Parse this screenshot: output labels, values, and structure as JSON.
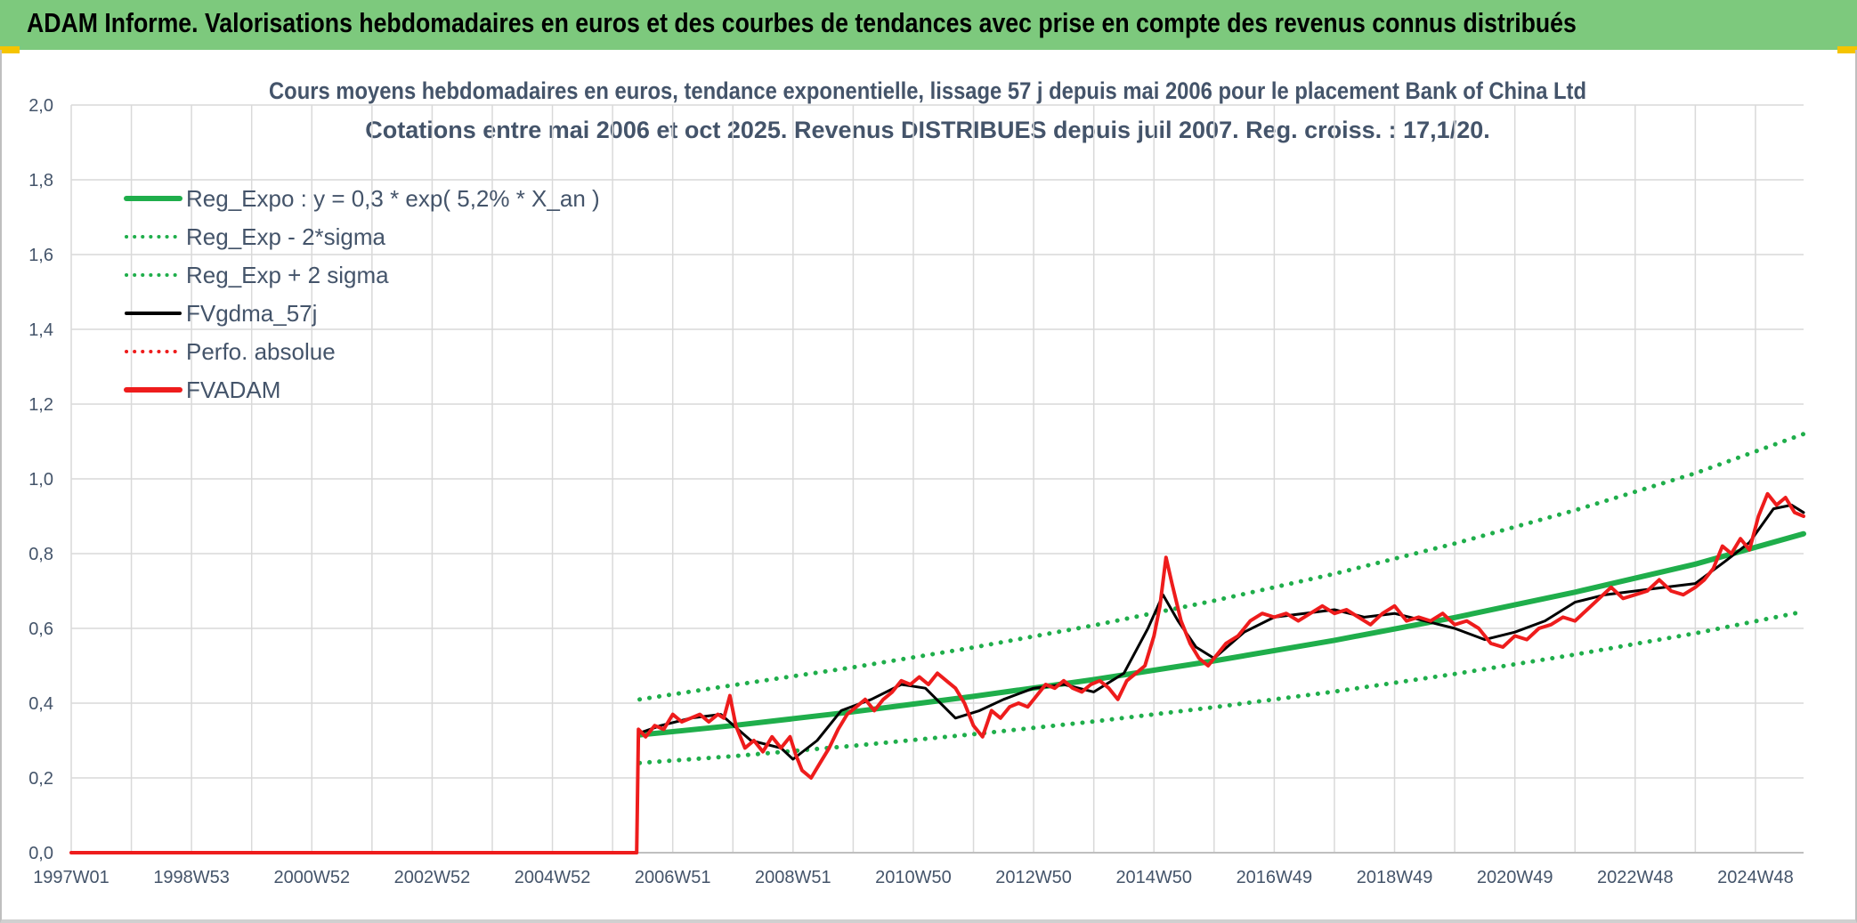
{
  "header": {
    "title": "ADAM Informe. Valorisations hebdomadaires en euros et des courbes de tendances avec prise en compte des revenus connus distribués"
  },
  "chart_data": {
    "type": "line",
    "title_line1": "Cours moyens hebdomadaires en euros, tendance exponentielle, lissage 57 j depuis mai 2006 pour le placement Bank of China Ltd",
    "title_line2": "Cotations entre mai 2006 et oct 2025. Revenus DISTRIBUES depuis juil 2007. Reg. croiss. : 17,1/20.",
    "xlabel": "",
    "ylabel": "",
    "ylim": [
      0,
      2.0
    ],
    "xlim": [
      1997.0,
      2025.8
    ],
    "grid": true,
    "legend_position": "top-left",
    "yticks": [
      "0,0",
      "0,2",
      "0,4",
      "0,6",
      "0,8",
      "1,0",
      "1,2",
      "1,4",
      "1,6",
      "1,8",
      "2,0"
    ],
    "xticks": [
      {
        "label": "1997W01",
        "x": 1997.0
      },
      {
        "label": "1998W53",
        "x": 1999.0
      },
      {
        "label": "2000W52",
        "x": 2001.0
      },
      {
        "label": "2002W52",
        "x": 2003.0
      },
      {
        "label": "2004W52",
        "x": 2005.0
      },
      {
        "label": "2006W51",
        "x": 2007.0
      },
      {
        "label": "2008W51",
        "x": 2009.0
      },
      {
        "label": "2010W50",
        "x": 2011.0
      },
      {
        "label": "2012W50",
        "x": 2013.0
      },
      {
        "label": "2014W50",
        "x": 2015.0
      },
      {
        "label": "2016W49",
        "x": 2017.0
      },
      {
        "label": "2018W49",
        "x": 2019.0
      },
      {
        "label": "2020W49",
        "x": 2021.0
      },
      {
        "label": "2022W48",
        "x": 2023.0
      },
      {
        "label": "2024W48",
        "x": 2025.0
      }
    ],
    "series": [
      {
        "name": "Reg_Expo : y = 0,3 * exp( 5,2% *  X_an )",
        "color": "#1fae4b",
        "style": "solid",
        "x": [
          2006.45,
          2008,
          2010,
          2012,
          2014,
          2016,
          2018,
          2020,
          2022,
          2024,
          2025.8
        ],
        "y": [
          0.315,
          0.34,
          0.377,
          0.418,
          0.463,
          0.513,
          0.568,
          0.629,
          0.697,
          0.772,
          0.853
        ]
      },
      {
        "name": "Reg_Exp - 2*sigma",
        "color": "#1fae4b",
        "style": "dotted",
        "x": [
          2006.45,
          2008,
          2010,
          2012,
          2014,
          2016,
          2018,
          2020,
          2022,
          2024,
          2025.8
        ],
        "y": [
          0.24,
          0.258,
          0.286,
          0.317,
          0.351,
          0.389,
          0.431,
          0.478,
          0.53,
          0.587,
          0.645
        ]
      },
      {
        "name": "Reg_Exp + 2 sigma",
        "color": "#1fae4b",
        "style": "dotted",
        "x": [
          2006.45,
          2008,
          2010,
          2012,
          2014,
          2016,
          2018,
          2020,
          2022,
          2024,
          2025.8
        ],
        "y": [
          0.41,
          0.448,
          0.496,
          0.549,
          0.608,
          0.674,
          0.746,
          0.827,
          0.916,
          1.015,
          1.12
        ]
      },
      {
        "name": "FVgdma_57j",
        "color": "#000000",
        "style": "solid",
        "x": [
          2006.45,
          2006.8,
          2007.3,
          2007.8,
          2008.3,
          2008.8,
          2009.0,
          2009.4,
          2009.8,
          2010.3,
          2010.8,
          2011.2,
          2011.7,
          2012.1,
          2012.5,
          2013.0,
          2013.5,
          2014.0,
          2014.5,
          2014.9,
          2015.15,
          2015.4,
          2015.7,
          2016.0,
          2016.5,
          2017.0,
          2017.5,
          2018.0,
          2018.5,
          2019.0,
          2019.5,
          2020.0,
          2020.5,
          2021.0,
          2021.5,
          2022.0,
          2022.5,
          2023.0,
          2023.5,
          2024.0,
          2024.5,
          2024.9,
          2025.3,
          2025.6,
          2025.8
        ],
        "y": [
          0.32,
          0.34,
          0.36,
          0.37,
          0.3,
          0.28,
          0.25,
          0.3,
          0.38,
          0.41,
          0.45,
          0.44,
          0.36,
          0.38,
          0.41,
          0.44,
          0.45,
          0.43,
          0.48,
          0.6,
          0.69,
          0.62,
          0.55,
          0.52,
          0.59,
          0.63,
          0.64,
          0.65,
          0.63,
          0.64,
          0.62,
          0.6,
          0.57,
          0.59,
          0.62,
          0.67,
          0.69,
          0.7,
          0.71,
          0.72,
          0.78,
          0.83,
          0.92,
          0.93,
          0.91
        ]
      },
      {
        "name": "Perfo. absolue",
        "color": "#ee1c1c",
        "style": "dotted",
        "x": [],
        "y": []
      },
      {
        "name": "FVADAM",
        "color": "#ee1c1c",
        "style": "solid",
        "x": [
          1997.0,
          2006.4,
          2006.43,
          2006.55,
          2006.7,
          2006.85,
          2007.0,
          2007.15,
          2007.3,
          2007.45,
          2007.6,
          2007.75,
          2007.85,
          2007.95,
          2008.05,
          2008.2,
          2008.35,
          2008.5,
          2008.65,
          2008.8,
          2008.95,
          2009.05,
          2009.15,
          2009.3,
          2009.45,
          2009.6,
          2009.75,
          2009.9,
          2010.05,
          2010.2,
          2010.35,
          2010.5,
          2010.65,
          2010.8,
          2010.95,
          2011.1,
          2011.25,
          2011.4,
          2011.55,
          2011.7,
          2011.85,
          2012.0,
          2012.15,
          2012.3,
          2012.45,
          2012.6,
          2012.75,
          2012.9,
          2013.05,
          2013.2,
          2013.35,
          2013.5,
          2013.65,
          2013.8,
          2013.95,
          2014.1,
          2014.25,
          2014.4,
          2014.55,
          2014.7,
          2014.85,
          2015.0,
          2015.1,
          2015.2,
          2015.3,
          2015.45,
          2015.6,
          2015.75,
          2015.9,
          2016.05,
          2016.2,
          2016.4,
          2016.6,
          2016.8,
          2017.0,
          2017.2,
          2017.4,
          2017.6,
          2017.8,
          2018.0,
          2018.2,
          2018.4,
          2018.6,
          2018.8,
          2019.0,
          2019.2,
          2019.4,
          2019.6,
          2019.8,
          2020.0,
          2020.2,
          2020.4,
          2020.6,
          2020.8,
          2021.0,
          2021.2,
          2021.4,
          2021.6,
          2021.8,
          2022.0,
          2022.2,
          2022.4,
          2022.6,
          2022.8,
          2023.0,
          2023.2,
          2023.4,
          2023.6,
          2023.8,
          2024.0,
          2024.15,
          2024.3,
          2024.45,
          2024.6,
          2024.75,
          2024.9,
          2025.05,
          2025.2,
          2025.35,
          2025.5,
          2025.65,
          2025.8
        ],
        "y": [
          0.0,
          0.0,
          0.33,
          0.31,
          0.34,
          0.33,
          0.37,
          0.35,
          0.36,
          0.37,
          0.35,
          0.37,
          0.36,
          0.42,
          0.34,
          0.28,
          0.3,
          0.27,
          0.31,
          0.28,
          0.31,
          0.26,
          0.22,
          0.2,
          0.24,
          0.28,
          0.33,
          0.37,
          0.39,
          0.41,
          0.38,
          0.41,
          0.43,
          0.46,
          0.45,
          0.47,
          0.45,
          0.48,
          0.46,
          0.44,
          0.4,
          0.34,
          0.31,
          0.38,
          0.36,
          0.39,
          0.4,
          0.39,
          0.42,
          0.45,
          0.44,
          0.46,
          0.44,
          0.43,
          0.45,
          0.46,
          0.44,
          0.41,
          0.46,
          0.48,
          0.5,
          0.58,
          0.66,
          0.79,
          0.72,
          0.62,
          0.56,
          0.52,
          0.5,
          0.53,
          0.56,
          0.58,
          0.62,
          0.64,
          0.63,
          0.64,
          0.62,
          0.64,
          0.66,
          0.64,
          0.65,
          0.63,
          0.61,
          0.64,
          0.66,
          0.62,
          0.63,
          0.62,
          0.64,
          0.61,
          0.62,
          0.6,
          0.56,
          0.55,
          0.58,
          0.57,
          0.6,
          0.61,
          0.63,
          0.62,
          0.65,
          0.68,
          0.71,
          0.68,
          0.69,
          0.7,
          0.73,
          0.7,
          0.69,
          0.71,
          0.73,
          0.76,
          0.82,
          0.8,
          0.84,
          0.81,
          0.9,
          0.96,
          0.93,
          0.95,
          0.91,
          0.9
        ]
      }
    ]
  }
}
